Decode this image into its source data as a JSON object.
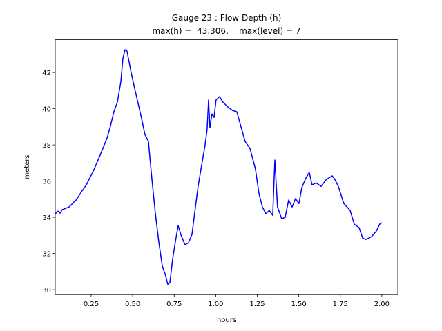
{
  "chart_data": {
    "type": "line",
    "title": "Gauge 23 : Flow Depth (h)",
    "subtitle": "max(h) =  43.306,    max(level) = 7",
    "x_label": "hours",
    "y_label": "meters",
    "xlim": [
      0.034,
      2.096
    ],
    "ylim": [
      29.73,
      43.81
    ],
    "xticks": [
      0.25,
      {
        "value": 0.5,
        "label": "0.50"
      },
      0.75,
      {
        "value": 1.0,
        "label": "1.00"
      },
      1.25,
      {
        "value": 1.5,
        "label": "1.50"
      },
      1.75,
      {
        "value": 2.0,
        "label": "2.00"
      }
    ],
    "yticks": [
      30,
      32,
      34,
      36,
      38,
      40,
      42
    ],
    "series": [
      {
        "color": "#0000ff",
        "x": [
          0.034,
          0.051,
          0.063,
          0.076,
          0.117,
          0.159,
          0.192,
          0.221,
          0.242,
          0.263,
          0.304,
          0.346,
          0.366,
          0.387,
          0.408,
          0.429,
          0.441,
          0.454,
          0.466,
          0.491,
          0.512,
          0.533,
          0.554,
          0.574,
          0.595,
          0.616,
          0.637,
          0.657,
          0.678,
          0.699,
          0.711,
          0.724,
          0.741,
          0.761,
          0.774,
          0.79,
          0.815,
          0.836,
          0.857,
          0.878,
          0.894,
          0.915,
          0.936,
          0.948,
          0.957,
          0.965,
          0.977,
          0.99,
          1.002,
          1.023,
          1.044,
          1.073,
          1.102,
          1.127,
          1.148,
          1.177,
          1.206,
          1.239,
          1.26,
          1.281,
          1.302,
          1.322,
          1.343,
          1.356,
          1.372,
          1.397,
          1.418,
          1.439,
          1.46,
          1.48,
          1.501,
          1.518,
          1.543,
          1.563,
          1.58,
          1.605,
          1.634,
          1.667,
          1.701,
          1.717,
          1.738,
          1.771,
          1.809,
          1.834,
          1.863,
          1.884,
          1.904,
          1.938,
          1.967,
          1.987,
          2.0
        ],
        "values": [
          34.19,
          34.34,
          34.23,
          34.42,
          34.57,
          34.95,
          35.41,
          35.79,
          36.17,
          36.55,
          37.43,
          38.38,
          39.03,
          39.83,
          40.36,
          41.5,
          42.76,
          43.26,
          43.18,
          42.0,
          41.12,
          40.29,
          39.45,
          38.57,
          38.19,
          36.1,
          34.19,
          32.67,
          31.33,
          30.76,
          30.3,
          30.38,
          31.71,
          32.86,
          33.54,
          33.05,
          32.48,
          32.59,
          33.05,
          34.57,
          35.71,
          36.86,
          38.0,
          38.84,
          40.48,
          38.95,
          39.71,
          39.52,
          40.48,
          40.67,
          40.36,
          40.1,
          39.9,
          39.83,
          39.14,
          38.19,
          37.81,
          36.67,
          35.33,
          34.57,
          34.19,
          34.38,
          34.11,
          37.16,
          34.57,
          33.92,
          34.0,
          34.95,
          34.57,
          35.03,
          34.76,
          35.64,
          36.17,
          36.48,
          35.79,
          35.9,
          35.71,
          36.1,
          36.29,
          36.1,
          35.71,
          34.76,
          34.38,
          33.62,
          33.43,
          32.86,
          32.78,
          32.93,
          33.24,
          33.62,
          33.7
        ]
      }
    ]
  }
}
